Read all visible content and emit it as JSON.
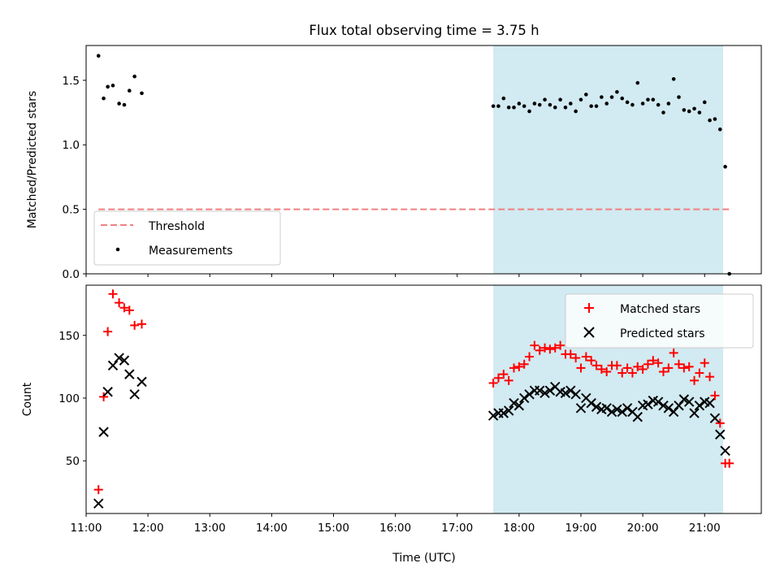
{
  "chart_data": [
    {
      "type": "scatter",
      "title": "Flux total observing time = 3.75 h",
      "ylabel": "Matched/Predicted stars",
      "xlabel": "",
      "xlim": [
        "11:00",
        "21:55"
      ],
      "ylim": [
        0,
        1.77
      ],
      "yticks": [
        0.0,
        0.5,
        1.0,
        1.5
      ],
      "ytick_labels": [
        "0.0",
        "0.5",
        "1.0",
        "1.5"
      ],
      "grid": false,
      "legend_position": "lower-left",
      "shaded_region": {
        "start": "17:35",
        "end": "21:18",
        "color": "#add8e6"
      },
      "threshold": {
        "name": "Threshold",
        "value": 0.5,
        "x_start": "11:12",
        "x_end": "21:24",
        "color": "#f08080",
        "style": "dashed"
      },
      "series": [
        {
          "name": "Measurements",
          "marker": "dot",
          "color": "#000000",
          "x": [
            "11:12",
            "11:17",
            "11:21",
            "11:26",
            "11:32",
            "11:37",
            "11:42",
            "11:47",
            "11:54",
            "17:35",
            "17:40",
            "17:45",
            "17:50",
            "17:55",
            "18:00",
            "18:05",
            "18:10",
            "18:15",
            "18:20",
            "18:25",
            "18:30",
            "18:35",
            "18:40",
            "18:45",
            "18:50",
            "18:55",
            "19:00",
            "19:05",
            "19:10",
            "19:15",
            "19:20",
            "19:25",
            "19:30",
            "19:35",
            "19:40",
            "19:45",
            "19:50",
            "19:55",
            "20:00",
            "20:05",
            "20:10",
            "20:15",
            "20:20",
            "20:25",
            "20:30",
            "20:35",
            "20:40",
            "20:45",
            "20:50",
            "20:55",
            "21:00",
            "21:05",
            "21:10",
            "21:15",
            "21:20",
            "21:24"
          ],
          "y": [
            1.69,
            1.36,
            1.45,
            1.46,
            1.32,
            1.31,
            1.42,
            1.53,
            1.4,
            1.3,
            1.3,
            1.36,
            1.29,
            1.29,
            1.32,
            1.3,
            1.26,
            1.32,
            1.31,
            1.35,
            1.31,
            1.29,
            1.35,
            1.29,
            1.32,
            1.26,
            1.35,
            1.39,
            1.3,
            1.3,
            1.37,
            1.32,
            1.37,
            1.41,
            1.36,
            1.33,
            1.31,
            1.48,
            1.32,
            1.35,
            1.35,
            1.31,
            1.25,
            1.32,
            1.51,
            1.37,
            1.27,
            1.26,
            1.28,
            1.25,
            1.33,
            1.19,
            1.2,
            1.12,
            0.83,
            0.0
          ]
        }
      ]
    },
    {
      "type": "scatter",
      "title": "",
      "xlabel": "Time (UTC)",
      "ylabel": "Count",
      "xlim": [
        "11:00",
        "21:55"
      ],
      "ylim": [
        8,
        190
      ],
      "xticks": [
        "11:00",
        "12:00",
        "13:00",
        "14:00",
        "15:00",
        "16:00",
        "17:00",
        "18:00",
        "19:00",
        "20:00",
        "21:00"
      ],
      "yticks": [
        50,
        100,
        150
      ],
      "ytick_labels": [
        "50",
        "100",
        "150"
      ],
      "grid": false,
      "legend_position": "top-right",
      "shaded_region": {
        "start": "17:35",
        "end": "21:18",
        "color": "#add8e6"
      },
      "series": [
        {
          "name": "Matched stars",
          "marker": "plus",
          "color": "#ff0000",
          "x": [
            "11:12",
            "11:17",
            "11:21",
            "11:26",
            "11:32",
            "11:37",
            "11:42",
            "11:47",
            "11:54",
            "17:35",
            "17:40",
            "17:45",
            "17:50",
            "17:55",
            "18:00",
            "18:05",
            "18:10",
            "18:15",
            "18:20",
            "18:25",
            "18:30",
            "18:35",
            "18:40",
            "18:45",
            "18:50",
            "18:55",
            "19:00",
            "19:05",
            "19:10",
            "19:15",
            "19:20",
            "19:25",
            "19:30",
            "19:35",
            "19:40",
            "19:45",
            "19:50",
            "19:55",
            "20:00",
            "20:05",
            "20:10",
            "20:15",
            "20:20",
            "20:25",
            "20:30",
            "20:35",
            "20:40",
            "20:45",
            "20:50",
            "20:55",
            "21:00",
            "21:05",
            "21:10",
            "21:15",
            "21:20",
            "21:24"
          ],
          "y": [
            27,
            101,
            153,
            183,
            176,
            172,
            170,
            158,
            159,
            112,
            116,
            119,
            114,
            124,
            125,
            127,
            133,
            142,
            138,
            140,
            139,
            140,
            142,
            135,
            135,
            132,
            124,
            133,
            130,
            126,
            123,
            121,
            126,
            126,
            120,
            124,
            120,
            125,
            123,
            127,
            130,
            128,
            121,
            124,
            136,
            127,
            124,
            125,
            114,
            120,
            128,
            117,
            102,
            80,
            48,
            48
          ]
        },
        {
          "name": "Predicted stars",
          "marker": "x",
          "color": "#000000",
          "x": [
            "11:12",
            "11:17",
            "11:21",
            "11:26",
            "11:32",
            "11:37",
            "11:42",
            "11:47",
            "11:54",
            "17:35",
            "17:40",
            "17:45",
            "17:50",
            "17:55",
            "18:00",
            "18:05",
            "18:10",
            "18:15",
            "18:20",
            "18:25",
            "18:30",
            "18:35",
            "18:40",
            "18:45",
            "18:50",
            "18:55",
            "19:00",
            "19:05",
            "19:10",
            "19:15",
            "19:20",
            "19:25",
            "19:30",
            "19:35",
            "19:40",
            "19:45",
            "19:50",
            "19:55",
            "20:00",
            "20:05",
            "20:10",
            "20:15",
            "20:20",
            "20:25",
            "20:30",
            "20:35",
            "20:40",
            "20:45",
            "20:50",
            "20:55",
            "21:00",
            "21:05",
            "21:10",
            "21:15",
            "21:20"
          ],
          "y": [
            16,
            73,
            105,
            126,
            132,
            130,
            119,
            103,
            113,
            86,
            88,
            88,
            90,
            96,
            94,
            100,
            103,
            106,
            106,
            104,
            106,
            109,
            105,
            104,
            106,
            103,
            92,
            100,
            96,
            93,
            91,
            92,
            89,
            91,
            89,
            92,
            89,
            85,
            94,
            95,
            98,
            97,
            94,
            92,
            89,
            94,
            99,
            97,
            88,
            94,
            97,
            96,
            84,
            71,
            58
          ]
        }
      ]
    }
  ]
}
